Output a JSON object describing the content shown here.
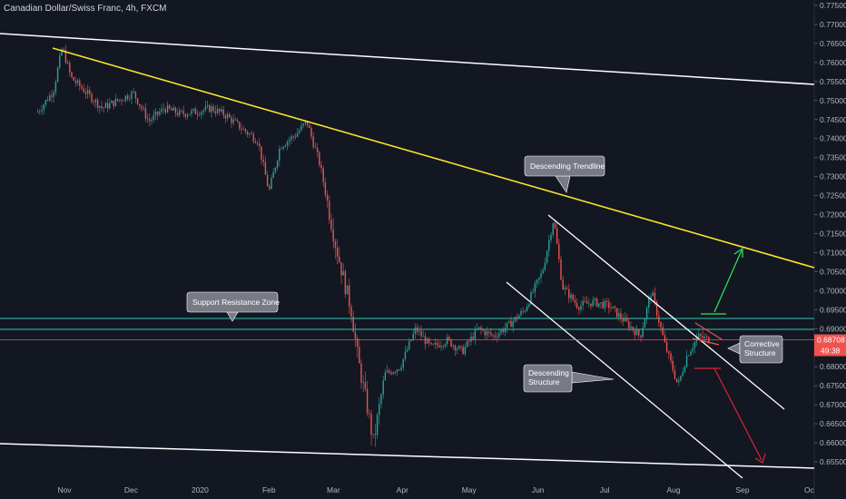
{
  "header": {
    "symbol_title": "Canadian Dollar/Swiss Franc, 4h, FXCM"
  },
  "colors": {
    "background": "#131722",
    "axis_text": "#b2b5be",
    "candle_up": "#26a69a",
    "candle_down": "#ef5350",
    "trendline": "#f7e72a",
    "channel": "#ffffff",
    "zone": "#2ec4b6",
    "price_line": "#ef5350",
    "bull_arrow": "#2ee85a",
    "bear_arrow": "#e0203a",
    "callout_bg": "#787b86"
  },
  "chart_data": {
    "type": "candlestick",
    "title": "Canadian Dollar/Swiss Franc, 4h, FXCM",
    "x_ticks": [
      "Nov",
      "Dec",
      "2020",
      "Feb",
      "Mar",
      "Apr",
      "May",
      "Jun",
      "Jul",
      "Aug",
      "Sep",
      "Oc"
    ],
    "y_ticks": [
      "0.77500",
      "0.77000",
      "0.76500",
      "0.76000",
      "0.75500",
      "0.75000",
      "0.74500",
      "0.74000",
      "0.73500",
      "0.73000",
      "0.72500",
      "0.72000",
      "0.71500",
      "0.71000",
      "0.70500",
      "0.70000",
      "0.69500",
      "0.69000",
      "0.68500",
      "0.68000",
      "0.67500",
      "0.67000",
      "0.66500",
      "0.66000",
      "0.65500"
    ],
    "ylim": [
      0.6525,
      0.778
    ],
    "last_price": {
      "value": "0.68708",
      "countdown": "49:38"
    },
    "price_path": [
      [
        "Oct 20",
        0.747
      ],
      [
        "Oct 27",
        0.7525
      ],
      [
        "Oct 31",
        0.764
      ],
      [
        "Nov 4",
        0.756
      ],
      [
        "Nov 11",
        0.752
      ],
      [
        "Nov 18",
        0.748
      ],
      [
        "Nov 25",
        0.75
      ],
      [
        "Dec 2",
        0.752
      ],
      [
        "Dec 9",
        0.7445
      ],
      [
        "Dec 16",
        0.748
      ],
      [
        "Dec 23",
        0.7465
      ],
      [
        "Dec 30",
        0.747
      ],
      [
        "Jan 6",
        0.748
      ],
      [
        "Jan 13",
        0.746
      ],
      [
        "Jan 20",
        0.7425
      ],
      [
        "Jan 27",
        0.7395
      ],
      [
        "Feb 1",
        0.726
      ],
      [
        "Feb 6",
        0.738
      ],
      [
        "Feb 13",
        0.741
      ],
      [
        "Feb 18",
        0.7445
      ],
      [
        "Feb 24",
        0.733
      ],
      [
        "Mar 2",
        0.712
      ],
      [
        "Mar 6",
        0.702
      ],
      [
        "Mar 9",
        0.695
      ],
      [
        "Mar 12",
        0.682
      ],
      [
        "Mar 16",
        0.67
      ],
      [
        "Mar 19",
        0.66
      ],
      [
        "Mar 24",
        0.678
      ],
      [
        "Mar 31",
        0.68
      ],
      [
        "Apr 7",
        0.69
      ],
      [
        "Apr 14",
        0.685
      ],
      [
        "Apr 21",
        0.687
      ],
      [
        "Apr 28",
        0.684
      ],
      [
        "May 5",
        0.69
      ],
      [
        "May 12",
        0.688
      ],
      [
        "May 19",
        0.691
      ],
      [
        "May 26",
        0.695
      ],
      [
        "Jun 3",
        0.705
      ],
      [
        "Jun 8",
        0.719
      ],
      [
        "Jun 12",
        0.701
      ],
      [
        "Jun 19",
        0.696
      ],
      [
        "Jun 26",
        0.697
      ],
      [
        "Jul 3",
        0.696
      ],
      [
        "Jul 10",
        0.692
      ],
      [
        "Jul 17",
        0.688
      ],
      [
        "Jul 22",
        0.7
      ],
      [
        "Jul 28",
        0.686
      ],
      [
        "Aug 3",
        0.675
      ],
      [
        "Aug 7",
        0.683
      ],
      [
        "Aug 12",
        0.688
      ],
      [
        "Aug 17",
        0.6871
      ]
    ],
    "annotations": [
      {
        "text": "Descending Trendline",
        "style": "callout"
      },
      {
        "text": "Support Resistance Zone",
        "style": "callout"
      },
      {
        "text": "Descending\nStructure",
        "style": "callout"
      },
      {
        "text": "Corrective\nStructure",
        "style": "callout"
      }
    ],
    "grid": false,
    "legend": "none"
  }
}
